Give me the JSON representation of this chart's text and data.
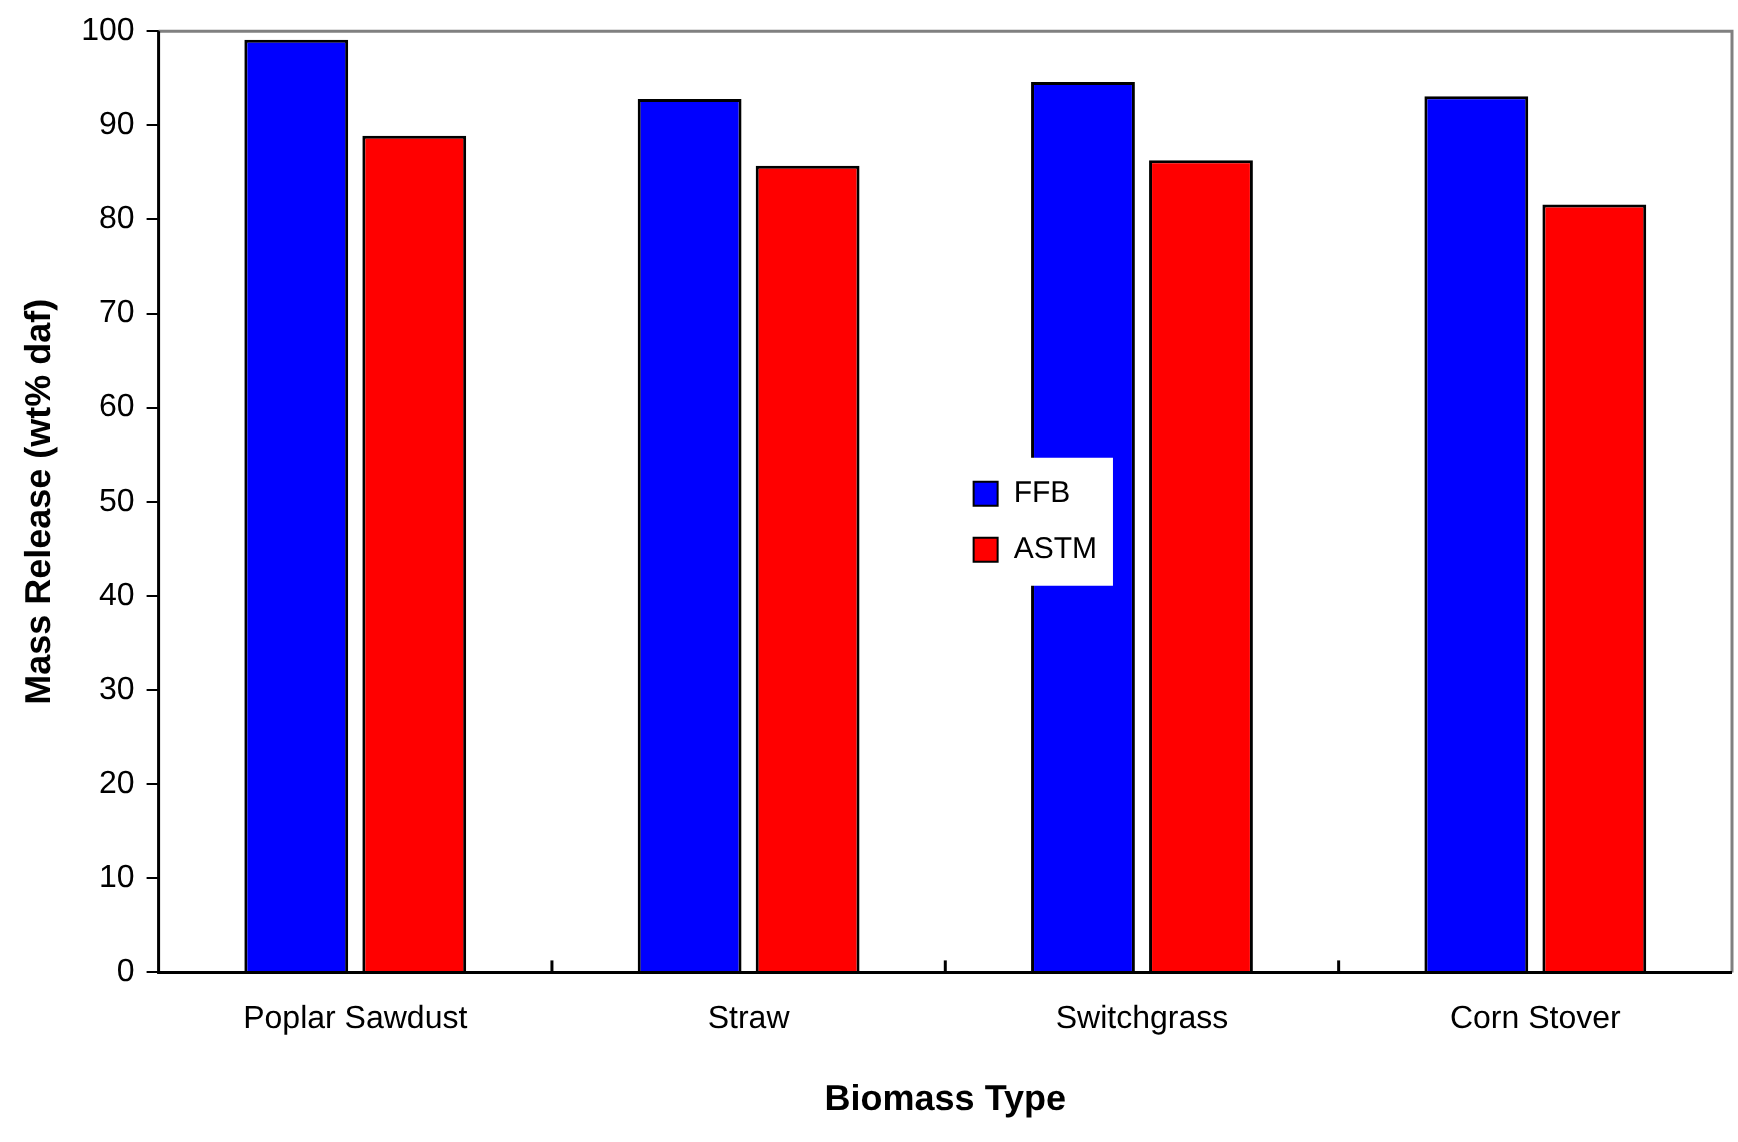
{
  "chart_data": {
    "type": "bar",
    "xlabel": "Biomass Type",
    "ylabel": "Mass Release (wt% daf)",
    "categories": [
      "Poplar Sawdust",
      "Straw",
      "Switchgrass",
      "Corn Stover"
    ],
    "series": [
      {
        "name": "FFB",
        "color": "#0000ff",
        "values": [
          99.1,
          92.8,
          94.6,
          93.1
        ]
      },
      {
        "name": "ASTM",
        "color": "#ff0000",
        "values": [
          88.9,
          85.7,
          86.3,
          81.6
        ]
      }
    ],
    "ylim": [
      0,
      100
    ],
    "yticks": [
      0,
      10,
      20,
      30,
      40,
      50,
      60,
      70,
      80,
      90,
      100
    ],
    "grid": false,
    "legend": "center"
  }
}
